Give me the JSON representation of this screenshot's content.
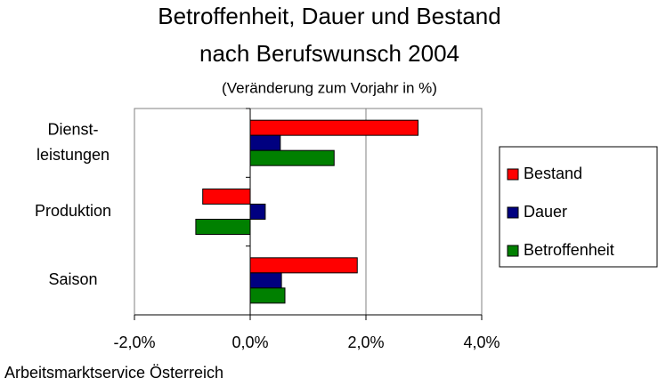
{
  "chart_data": {
    "type": "hbar",
    "title": "Betroffenheit, Dauer und Bestand\nnach Berufswunsch 2004",
    "subtitle": "(Veränderung zum Vorjahr in %)",
    "source": "Arbeitsmarktservice Österreich",
    "categories": [
      "Dienst-\nleistungen",
      "Produktion",
      "Saison"
    ],
    "series": [
      {
        "name": "Bestand",
        "color": "#ff0000",
        "values": [
          2.9,
          -0.82,
          1.85
        ]
      },
      {
        "name": "Dauer",
        "color": "#000080",
        "values": [
          0.52,
          0.26,
          0.54
        ]
      },
      {
        "name": "Betroffenheit",
        "color": "#008000",
        "values": [
          1.45,
          -0.94,
          0.6
        ]
      }
    ],
    "xlim": [
      -2,
      4
    ],
    "xticks": [
      {
        "value": -2,
        "label": "-2,0%"
      },
      {
        "value": 0,
        "label": "0,0%"
      },
      {
        "value": 2,
        "label": "2,0%"
      },
      {
        "value": 4,
        "label": "4,0%"
      }
    ],
    "grid": true,
    "legend": "right"
  }
}
